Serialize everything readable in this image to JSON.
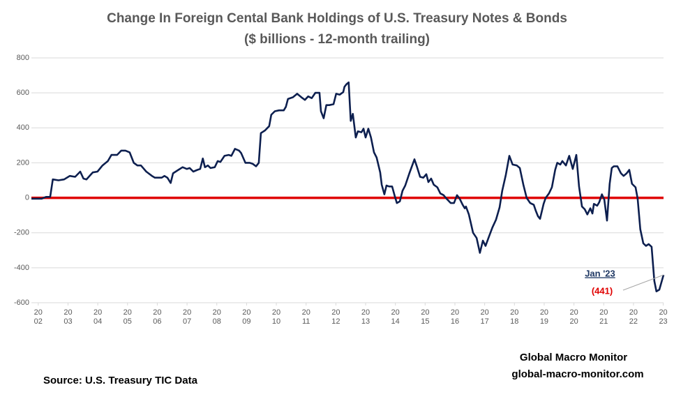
{
  "chart_data": {
    "type": "line",
    "title": "Change In Foreign Cental Bank Holdings of U.S. Treasury Notes & Bonds",
    "subtitle": "($ billions - 12-month trailing)",
    "source": "Source:  U.S. Treasury TIC Data",
    "credit": "Global Macro Monitor",
    "credit_url": "global-macro-monitor.com",
    "annotation": {
      "date": "Jan '23",
      "value_label": "(441)",
      "color": "#e00000"
    },
    "grid": true,
    "zero_line_color": "#e00000",
    "ylim": [
      -600,
      800
    ],
    "yticks": [
      -600,
      -400,
      -200,
      0,
      200,
      400,
      600,
      800
    ],
    "xlim": [
      2001.77,
      2023.01
    ],
    "xticks": [
      {
        "value": 2002,
        "label": "2002"
      },
      {
        "value": 2003,
        "label": "2003"
      },
      {
        "value": 2004,
        "label": "2004"
      },
      {
        "value": 2005,
        "label": "2005"
      },
      {
        "value": 2006,
        "label": "2006"
      },
      {
        "value": 2007,
        "label": "2007"
      },
      {
        "value": 2008,
        "label": "2008"
      },
      {
        "value": 2009,
        "label": "2009"
      },
      {
        "value": 2010,
        "label": "2010"
      },
      {
        "value": 2011,
        "label": "2011"
      },
      {
        "value": 2012,
        "label": "2012"
      },
      {
        "value": 2013,
        "label": "2013"
      },
      {
        "value": 2014,
        "label": "2014"
      },
      {
        "value": 2015,
        "label": "2015"
      },
      {
        "value": 2016,
        "label": "2016"
      },
      {
        "value": 2017,
        "label": "2017"
      },
      {
        "value": 2018,
        "label": "2018"
      },
      {
        "value": 2019,
        "label": "2019"
      },
      {
        "value": 2020,
        "label": "2020"
      },
      {
        "value": 2021,
        "label": "2021"
      },
      {
        "value": 2022,
        "label": "2022"
      },
      {
        "value": 2023,
        "label": "2023"
      }
    ],
    "x": [
      2001.77,
      2002.12,
      2002.26,
      2002.4,
      2002.49,
      2002.68,
      2002.87,
      2003.06,
      2003.24,
      2003.41,
      2003.52,
      2003.62,
      2003.83,
      2003.99,
      2004.16,
      2004.34,
      2004.46,
      2004.65,
      2004.79,
      2004.93,
      2005.07,
      2005.21,
      2005.33,
      2005.45,
      2005.63,
      2005.82,
      2005.92,
      2006.15,
      2006.24,
      2006.34,
      2006.45,
      2006.53,
      2006.71,
      2006.85,
      2006.99,
      2007.09,
      2007.21,
      2007.35,
      2007.44,
      2007.53,
      2007.6,
      2007.7,
      2007.79,
      2007.93,
      2008.03,
      2008.12,
      2008.26,
      2008.4,
      2008.49,
      2008.61,
      2008.75,
      2008.82,
      2008.96,
      2009.1,
      2009.2,
      2009.32,
      2009.41,
      2009.48,
      2009.62,
      2009.76,
      2009.83,
      2009.95,
      2010.09,
      2010.25,
      2010.32,
      2010.39,
      2010.56,
      2010.7,
      2010.84,
      2010.96,
      2011.07,
      2011.19,
      2011.31,
      2011.45,
      2011.5,
      2011.59,
      2011.68,
      2011.78,
      2011.92,
      2012.01,
      2012.13,
      2012.25,
      2012.29,
      2012.36,
      2012.43,
      2012.5,
      2012.57,
      2012.67,
      2012.74,
      2012.86,
      2012.93,
      2013.0,
      2013.09,
      2013.18,
      2013.28,
      2013.37,
      2013.49,
      2013.54,
      2013.63,
      2013.7,
      2013.79,
      2013.89,
      2013.98,
      2014.05,
      2014.15,
      2014.24,
      2014.33,
      2014.47,
      2014.64,
      2014.73,
      2014.83,
      2014.94,
      2015.04,
      2015.11,
      2015.2,
      2015.29,
      2015.41,
      2015.51,
      2015.62,
      2015.72,
      2015.86,
      2015.97,
      2016.07,
      2016.16,
      2016.26,
      2016.33,
      2016.37,
      2016.47,
      2016.61,
      2016.73,
      2016.84,
      2016.94,
      2017.03,
      2017.15,
      2017.26,
      2017.38,
      2017.5,
      2017.59,
      2017.71,
      2017.83,
      2017.94,
      2018.08,
      2018.18,
      2018.3,
      2018.41,
      2018.53,
      2018.65,
      2018.72,
      2018.79,
      2018.86,
      2018.98,
      2019.05,
      2019.16,
      2019.26,
      2019.37,
      2019.44,
      2019.54,
      2019.61,
      2019.73,
      2019.84,
      2019.96,
      2020.08,
      2020.17,
      2020.27,
      2020.36,
      2020.45,
      2020.55,
      2020.62,
      2020.67,
      2020.78,
      2020.85,
      2020.94,
      2021.02,
      2021.11,
      2021.2,
      2021.27,
      2021.34,
      2021.46,
      2021.58,
      2021.67,
      2021.77,
      2021.86,
      2021.95,
      2022.07,
      2022.14,
      2022.23,
      2022.33,
      2022.42,
      2022.51,
      2022.61,
      2022.7,
      2022.77,
      2022.87,
      2023.01
    ],
    "series": [
      {
        "color": "#0d1f4f",
        "values": [
          -5,
          -5,
          5,
          5,
          105,
          100,
          105,
          125,
          120,
          150,
          110,
          105,
          145,
          150,
          185,
          210,
          245,
          245,
          270,
          270,
          260,
          200,
          185,
          185,
          150,
          125,
          115,
          115,
          125,
          115,
          85,
          140,
          160,
          175,
          165,
          170,
          150,
          160,
          165,
          225,
          175,
          185,
          170,
          175,
          210,
          205,
          240,
          245,
          240,
          280,
          270,
          255,
          200,
          200,
          195,
          180,
          200,
          370,
          385,
          410,
          475,
          495,
          500,
          500,
          520,
          565,
          575,
          595,
          575,
          560,
          580,
          570,
          600,
          600,
          495,
          455,
          530,
          530,
          535,
          595,
          590,
          605,
          635,
          650,
          660,
          440,
          480,
          345,
          380,
          375,
          395,
          345,
          395,
          345,
          260,
          230,
          145,
          75,
          20,
          70,
          65,
          65,
          10,
          -30,
          -20,
          40,
          70,
          140,
          220,
          175,
          120,
          115,
          135,
          90,
          110,
          75,
          60,
          25,
          15,
          -5,
          -30,
          -30,
          15,
          -5,
          -40,
          -60,
          -50,
          -95,
          -200,
          -230,
          -315,
          -245,
          -275,
          -220,
          -170,
          -125,
          -55,
          40,
          130,
          240,
          190,
          185,
          170,
          75,
          0,
          -30,
          -40,
          -75,
          -105,
          -120,
          -35,
          0,
          25,
          60,
          160,
          200,
          190,
          210,
          185,
          240,
          165,
          245,
          65,
          -50,
          -65,
          -95,
          -60,
          -90,
          -35,
          -45,
          -25,
          20,
          -10,
          -130,
          80,
          170,
          180,
          180,
          140,
          125,
          140,
          160,
          80,
          60,
          -5,
          -180,
          -260,
          -275,
          -265,
          -280,
          -475,
          -535,
          -525,
          -441
        ]
      }
    ]
  }
}
